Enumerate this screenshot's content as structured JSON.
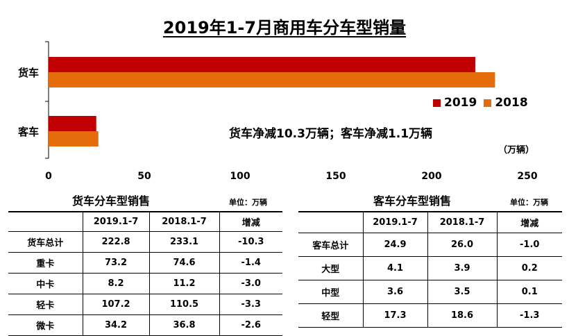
{
  "title": "2019年1-7月商用车分车型销量",
  "note": "货车净减10.3万辆；客车净减1.1万辆",
  "axis_unit": "（万辆）",
  "colors": {
    "y2019": "#c00000",
    "y2018": "#e46c0a"
  },
  "chart_data": {
    "type": "bar",
    "orientation": "horizontal",
    "categories": [
      "货车",
      "客车"
    ],
    "series": [
      {
        "name": "2019",
        "values": [
          222.8,
          24.9
        ]
      },
      {
        "name": "2018",
        "values": [
          233.1,
          26.0
        ]
      }
    ],
    "xlim": [
      0,
      250
    ],
    "xticks": [
      "0",
      "50",
      "100",
      "150",
      "200",
      "250"
    ],
    "legend_position": "right"
  },
  "truck_table": {
    "title": "货车分车型销售",
    "unit": "单位：万辆",
    "headers": [
      "",
      "2019.1-7",
      "2018.1-7",
      "增减"
    ],
    "rows": [
      [
        "货车总计",
        "222.8",
        "233.1",
        "-10.3"
      ],
      [
        "重卡",
        "73.2",
        "74.6",
        "-1.4"
      ],
      [
        "中卡",
        "8.2",
        "11.2",
        "-3.0"
      ],
      [
        "轻卡",
        "107.2",
        "110.5",
        "-3.3"
      ],
      [
        "微卡",
        "34.2",
        "36.8",
        "-2.6"
      ]
    ]
  },
  "bus_table": {
    "title": "客车分车型销售",
    "unit": "单位：万辆",
    "headers": [
      "",
      "2019.1-7",
      "2018.1-7",
      "增减"
    ],
    "rows": [
      [
        "客车总计",
        "24.9",
        "26.0",
        "-1.0"
      ],
      [
        "大型",
        "4.1",
        "3.9",
        "0.2"
      ],
      [
        "中型",
        "3.6",
        "3.5",
        "0.1"
      ],
      [
        "轻型",
        "17.3",
        "18.6",
        "-1.3"
      ]
    ]
  }
}
